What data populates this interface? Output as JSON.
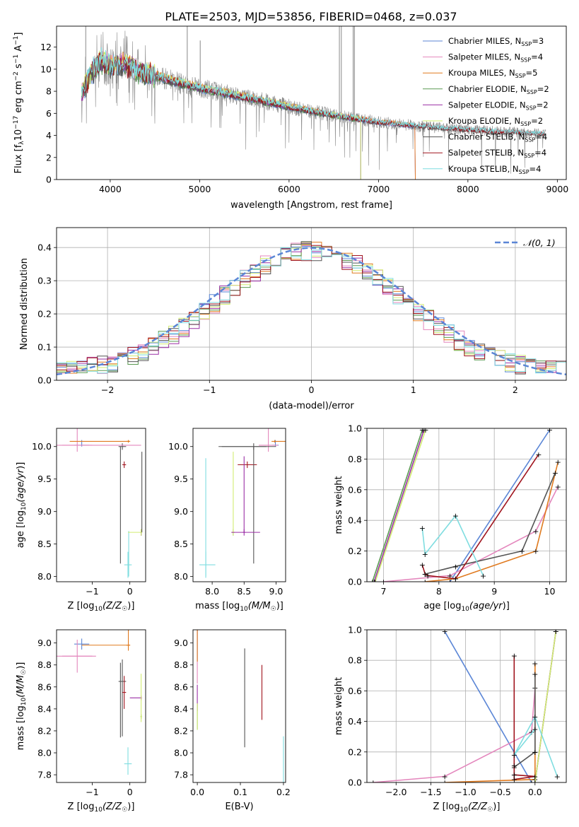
{
  "figure_title": "PLATE=2503, MJD=53856, FIBERID=0468, z=0.037",
  "colors": {
    "Chabrier MILES": "#5b86d6",
    "Salpeter MILES": "#e487bd",
    "Kroupa MILES": "#e07a1f",
    "Chabrier ELODIE": "#5a9a52",
    "Salpeter ELODIE": "#9b2fa6",
    "Kroupa ELODIE": "#d2ec72",
    "Chabrier STELIB": "#555555",
    "Salpeter STELIB": "#a0141e",
    "Kroupa STELIB": "#7fdde0",
    "data": "#888888",
    "gauss": "#5b86d6",
    "grid": "#b0b0b0"
  },
  "chart_data": [
    {
      "type": "line",
      "id": "spectrum",
      "title": "PLATE=2503, MJD=53856, FIBERID=0468, z=0.037",
      "xlabel": "wavelength [Angstrom, rest frame]",
      "ylabel": "Flux [f_λ 10^-17 erg cm^-2 s^-1 A^-1]",
      "xlim": [
        3400,
        9100
      ],
      "ylim": [
        0,
        13.9
      ],
      "xticks": [
        4000,
        5000,
        6000,
        7000,
        8000,
        9000
      ],
      "yticks": [
        0,
        2,
        4,
        6,
        8,
        10,
        12
      ],
      "grid": false,
      "legend": "top-right",
      "legend_labels": [
        "Chabrier MILES, N_SSP=3",
        "Salpeter MILES, N_SSP=4",
        "Kroupa MILES, N_SSP=5",
        "Chabrier ELODIE, N_SSP=2",
        "Salpeter ELODIE, N_SSP=2",
        "Kroupa ELODIE, N_SSP=2",
        "Chabrier STELIB, N_SSP=4",
        "Salpeter STELIB, N_SSP=4",
        "Kroupa STELIB, N_SSP=4"
      ],
      "continuum_x": [
        3680,
        3800,
        3900,
        4000,
        4100,
        4200,
        4300,
        4500,
        4800,
        5000,
        5300,
        5600,
        6000,
        6300,
        6600,
        7000,
        7500,
        8000,
        8500,
        9000
      ],
      "continuum_y": [
        7.8,
        9.8,
        10.8,
        10.3,
        10.4,
        10.3,
        9.9,
        9.4,
        8.7,
        8.3,
        7.8,
        7.3,
        6.6,
        6.1,
        5.7,
        5.2,
        4.8,
        4.5,
        4.3,
        4.1
      ],
      "wavelength_ranges": {
        "MILES": [
          3680,
          7410
        ],
        "ELODIE": [
          3680,
          6800
        ],
        "STELIB": [
          3680,
          8850
        ],
        "data": [
          3680,
          8870
        ]
      },
      "emission_lines": [
        [
          3727,
          13.9
        ],
        [
          4861,
          13.9
        ],
        [
          5007,
          12.6
        ],
        [
          6563,
          13.9
        ],
        [
          6584,
          13.9
        ],
        [
          6717,
          13.9
        ],
        [
          6731,
          13.9
        ]
      ]
    },
    {
      "type": "line",
      "id": "residuals",
      "xlabel": "(data-model)/error",
      "ylabel": "Normed distribution",
      "xlim": [
        -2.5,
        2.5
      ],
      "ylim": [
        0,
        0.46
      ],
      "xticks": [
        -2,
        -1,
        0,
        1,
        2
      ],
      "yticks": [
        0.0,
        0.1,
        0.2,
        0.3,
        0.4
      ],
      "grid": true,
      "legend": "top-right",
      "legend_labels": [
        "N(0,1)"
      ],
      "series": [
        {
          "name": "N(0,1)",
          "function": "gaussian",
          "mean": 0,
          "sigma": 1
        }
      ],
      "histogram_bins": 50,
      "histogram_bin_width": 0.1
    },
    {
      "type": "scatter",
      "id": "age-vs-Z",
      "xlabel": "Z [log10(Z/Z☉)]",
      "ylabel": "age [log10(age/yr)]",
      "xlim": [
        -1.95,
        0.42
      ],
      "ylim": [
        7.92,
        10.28
      ],
      "xticks": [
        -1,
        0
      ],
      "yticks": [
        8.0,
        8.5,
        9.0,
        9.5,
        10.0
      ],
      "grid": false
    },
    {
      "type": "scatter",
      "id": "age-vs-mass",
      "xlabel": "mass [log10(M/M☉)]",
      "ylabel": "",
      "xlim": [
        7.7,
        9.15
      ],
      "ylim": [
        7.92,
        10.28
      ],
      "xticks": [
        8.0,
        8.5,
        9.0
      ],
      "yticks": [
        8.0,
        8.5,
        9.0,
        9.5,
        10.0
      ],
      "grid": false
    },
    {
      "type": "line",
      "id": "massweight-vs-age",
      "xlabel": "age [log10(age/yr)]",
      "ylabel": "mass weight",
      "xlim": [
        6.7,
        10.3
      ],
      "ylim": [
        0,
        1.0
      ],
      "xticks": [
        7,
        8,
        9,
        10
      ],
      "yticks": [
        0.0,
        0.2,
        0.4,
        0.6,
        0.8,
        1.0
      ],
      "grid": true
    },
    {
      "type": "scatter",
      "id": "mass-vs-Z",
      "xlabel": "Z [log10(Z/Z☉)]",
      "ylabel": "mass [log10(M/M☉)]",
      "xlim": [
        -1.95,
        0.42
      ],
      "ylim": [
        7.73,
        9.12
      ],
      "xticks": [
        -1,
        0
      ],
      "yticks": [
        7.8,
        8.0,
        8.2,
        8.4,
        8.6,
        8.8,
        9.0
      ],
      "grid": false
    },
    {
      "type": "scatter",
      "id": "mass-vs-EBV",
      "xlabel": "E(B-V)",
      "ylabel": "",
      "xlim": [
        -0.01,
        0.205
      ],
      "ylim": [
        7.73,
        9.12
      ],
      "xticks": [
        0.0,
        0.1,
        0.2
      ],
      "yticks": [
        7.8,
        8.0,
        8.2,
        8.4,
        8.6,
        8.8,
        9.0
      ],
      "grid": false
    },
    {
      "type": "line",
      "id": "massweight-vs-Z",
      "xlabel": "Z [log10(Z/Z☉)]",
      "ylabel": "mass weight",
      "xlim": [
        -2.42,
        0.45
      ],
      "ylim": [
        0,
        1.0
      ],
      "xticks": [
        -2.0,
        -1.5,
        -1.0,
        -0.5,
        0.0
      ],
      "yticks": [
        0.0,
        0.2,
        0.4,
        0.6,
        0.8,
        1.0
      ],
      "grid": true
    }
  ],
  "model_fits": [
    {
      "name": "Chabrier MILES",
      "ebv": 0.0,
      "mass": 8.99,
      "age": 10.02,
      "Z": -1.28,
      "age_err": [
        0.02,
        0.08
      ],
      "mass_err": [
        0.05,
        0.05
      ],
      "Z_err": [
        0.2,
        0.2
      ],
      "comp_age": [
        8.2,
        10.0
      ],
      "comp_Z": [
        -0.05,
        -1.3
      ],
      "comp_w": [
        0.0,
        0.99
      ]
    },
    {
      "name": "Salpeter MILES",
      "ebv": 0.0,
      "mass": 8.88,
      "age": 10.02,
      "Z": -1.4,
      "age_err": [
        0.1,
        0.35
      ],
      "mass_err": [
        0.15,
        0.15
      ],
      "Z_err": [
        0.4,
        0.4
      ],
      "comp_age": [
        7.0,
        8.2,
        9.75,
        10.15
      ],
      "comp_Z": [
        -2.33,
        -1.3,
        -0.05,
        0.0
      ],
      "comp_w": [
        0.0,
        0.04,
        0.33,
        0.62
      ]
    },
    {
      "name": "Kroupa MILES",
      "ebv": 0.0,
      "mass": 8.98,
      "age": 10.08,
      "Z": -0.04,
      "age_err": [
        0.02,
        0.02
      ],
      "mass_err": [
        0.05,
        0.2
      ],
      "Z_err": [
        0.05,
        0.05
      ],
      "comp_age": [
        7.75,
        8.3,
        9.75,
        10.15
      ],
      "comp_Z": [
        -1.3,
        0.0,
        0.0,
        0.0
      ],
      "comp_w": [
        0.0,
        0.02,
        0.2,
        0.78
      ]
    },
    {
      "name": "Chabrier ELODIE",
      "ebv": 0.0,
      "mass": 8.33,
      "age": 8.68,
      "Z": 0.3,
      "age_err": [
        0.05,
        0.05
      ],
      "mass_err": [
        0.02,
        0.02
      ],
      "Z_err": [
        0.02,
        0.02
      ],
      "comp_age": [
        6.8,
        7.7
      ],
      "comp_Z": [
        0.0,
        0.3
      ],
      "comp_w": [
        0.0,
        0.99
      ]
    },
    {
      "name": "Salpeter ELODIE",
      "ebv": 0.0,
      "mass": 8.5,
      "age": 8.68,
      "Z": 0.3,
      "age_err": [
        0.05,
        0.05
      ],
      "mass_err": [
        0.02,
        0.02
      ],
      "Z_err": [
        0.02,
        0.02
      ],
      "comp_age": [
        6.83,
        7.73
      ],
      "comp_Z": [
        0.0,
        0.3
      ],
      "comp_w": [
        0.0,
        0.99
      ]
    },
    {
      "name": "Kroupa ELODIE",
      "ebv": 0.0,
      "mass": 8.33,
      "age": 8.68,
      "Z": 0.3,
      "age_err": [
        0.05,
        0.05
      ],
      "mass_err": [
        0.02,
        0.02
      ],
      "Z_err": [
        0.02,
        0.02
      ],
      "comp_age": [
        6.85,
        7.76
      ],
      "comp_Z": [
        0.0,
        0.3
      ],
      "comp_w": [
        0.0,
        0.99
      ]
    },
    {
      "name": "Chabrier STELIB",
      "ebv": 0.11,
      "mass": 8.65,
      "age": 10.0,
      "Z": -0.2,
      "age_err": [
        0.05,
        0.05
      ],
      "mass_err": [
        0.5,
        0.2
      ],
      "Z_err": [
        0.1,
        0.1
      ],
      "comp_age": [
        7.75,
        8.3,
        9.5,
        10.1
      ],
      "comp_Z": [
        -0.3,
        -0.3,
        0.0,
        0.0
      ],
      "comp_w": [
        0.05,
        0.1,
        0.2,
        0.71
      ]
    },
    {
      "name": "Salpeter STELIB",
      "ebv": 0.15,
      "mass": 8.55,
      "age": 9.72,
      "Z": -0.15,
      "age_err": [
        0.05,
        0.05
      ],
      "mass_err": [
        0.15,
        0.15
      ],
      "Z_err": [
        0.05,
        0.05
      ],
      "comp_age": [
        7.7,
        7.75,
        7.8,
        8.3,
        9.8
      ],
      "comp_Z": [
        -0.3,
        -0.3,
        0.0,
        -0.3,
        -0.3
      ],
      "comp_w": [
        0.11,
        0.05,
        0.04,
        0.02,
        0.83
      ]
    },
    {
      "name": "Kroupa STELIB",
      "ebv": 0.2,
      "mass": 7.9,
      "age": 8.18,
      "Z": -0.05,
      "age_err": [
        0.2,
        0.2
      ],
      "mass_err": [
        0.1,
        0.15
      ],
      "Z_err": [
        0.1,
        0.1
      ],
      "comp_age": [
        7.7,
        7.75,
        8.3,
        8.8
      ],
      "comp_Z": [
        0.0,
        -0.3,
        0.0,
        0.32
      ],
      "comp_w": [
        0.35,
        0.18,
        0.43,
        0.04
      ]
    }
  ]
}
